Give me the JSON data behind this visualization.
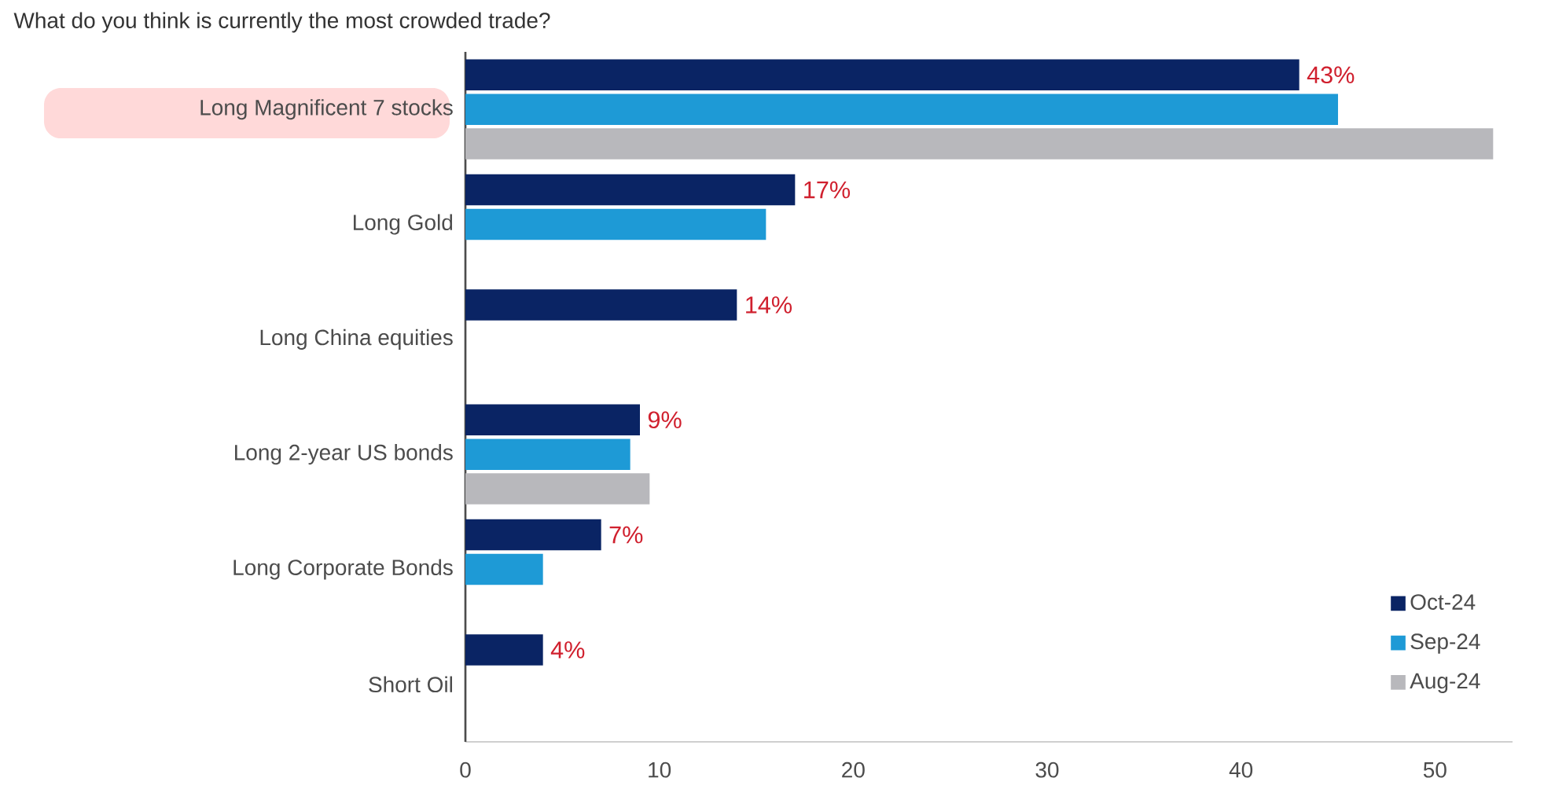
{
  "chart_data": {
    "type": "bar",
    "orientation": "horizontal",
    "title": "What do you think is currently the most crowded trade?",
    "categories": [
      "Long Magnificent 7 stocks",
      "Long Gold",
      "Long China equities",
      "Long 2-year US bonds",
      "Long Corporate Bonds",
      "Short Oil"
    ],
    "series": [
      {
        "name": "Oct-24",
        "color": "#0a2464",
        "values": [
          43,
          17,
          14,
          9,
          7,
          4
        ],
        "value_labels": [
          "43%",
          "17%",
          "14%",
          "9%",
          "7%",
          "4%"
        ]
      },
      {
        "name": "Sep-24",
        "color": "#1e9ad6",
        "values": [
          45,
          15.5,
          null,
          8.5,
          4,
          null
        ]
      },
      {
        "name": "Aug-24",
        "color": "#b8b8bc",
        "values": [
          53,
          null,
          null,
          9.5,
          null,
          null
        ]
      }
    ],
    "xlim": [
      0,
      54
    ],
    "xticks": [
      0,
      10,
      20,
      30,
      40,
      50
    ],
    "legend": "bottom right"
  }
}
